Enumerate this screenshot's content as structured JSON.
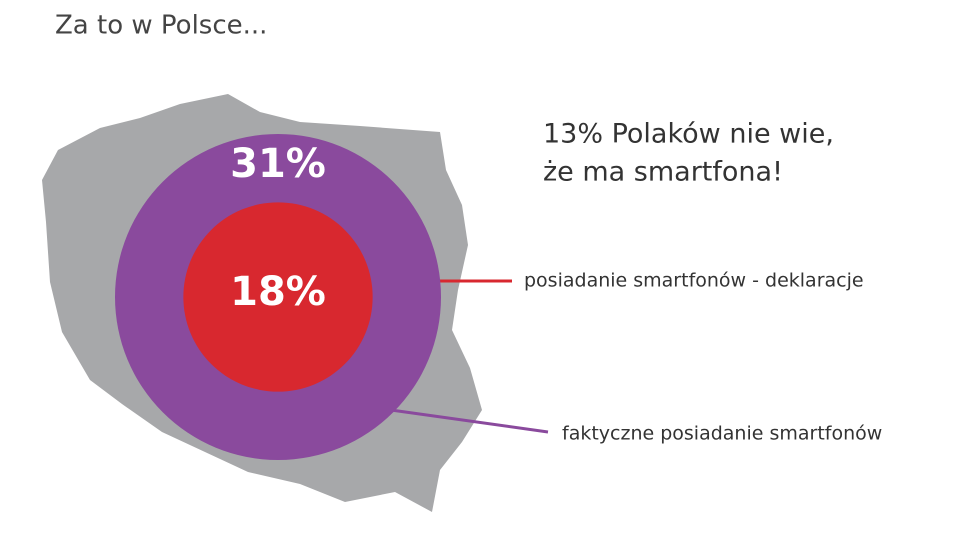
{
  "chart_data": {
    "type": "nested-circles",
    "title": "Za to w Polsce...",
    "annotation": [
      "13% Polaków nie wie,",
      "że ma smartfona!"
    ],
    "categories": [
      "faktyczne posiadanie smartfonów",
      "posiadanie smartfonów - deklaracje"
    ],
    "values": [
      31,
      18
    ],
    "value_labels": [
      "31%",
      "18%"
    ],
    "colors": [
      "#8a4a9d",
      "#d8282f"
    ]
  }
}
